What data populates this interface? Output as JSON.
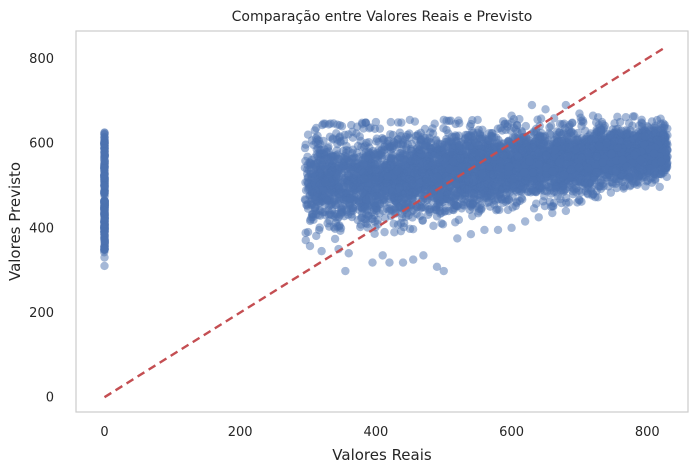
{
  "chart_data": {
    "type": "scatter",
    "title": "Comparação entre Valores Reais e Previsto",
    "xlabel": "Valores Reais",
    "ylabel": "Valores Previsto",
    "xlim": [
      -42,
      860
    ],
    "ylim": [
      -35,
      865
    ],
    "grid": false,
    "x_ticks": [
      0,
      200,
      400,
      600,
      800
    ],
    "x_tick_labels": [
      "0",
      "200",
      "400",
      "600",
      "800"
    ],
    "y_ticks": [
      0,
      200,
      400,
      600,
      800
    ],
    "y_tick_labels": [
      "0",
      "200",
      "400",
      "600",
      "800"
    ],
    "colors": {
      "points": "#4c72b0",
      "reference_line": "#c44e52",
      "frame": "#cccccc",
      "text": "#262626"
    },
    "series": [
      {
        "kind": "scatter",
        "description_role": "points",
        "clusters": [
          {
            "x": [
              0,
              0
            ],
            "y_range": [
              310,
              625
            ]
          },
          {
            "x_range": [
              295,
              830
            ],
            "y_at_x_min": [
              380,
              620
            ],
            "y_at_x_max": [
              520,
              640
            ]
          }
        ],
        "points": [
          [
            0,
            310
          ],
          [
            0,
            330
          ],
          [
            0,
            350
          ],
          [
            0,
            385
          ],
          [
            0,
            400
          ],
          [
            0,
            420
          ],
          [
            0,
            440
          ],
          [
            0,
            460
          ],
          [
            0,
            480
          ],
          [
            0,
            500
          ],
          [
            0,
            520
          ],
          [
            0,
            540
          ],
          [
            0,
            560
          ],
          [
            0,
            580
          ],
          [
            0,
            600
          ],
          [
            0,
            615
          ],
          [
            0,
            625
          ],
          [
            355,
            298
          ],
          [
            500,
            298
          ],
          [
            490,
            308
          ],
          [
            395,
            318
          ],
          [
            420,
            318
          ],
          [
            440,
            318
          ],
          [
            320,
            345
          ],
          [
            345,
            350
          ],
          [
            360,
            340
          ],
          [
            410,
            335
          ],
          [
            455,
            325
          ],
          [
            470,
            335
          ],
          [
            300,
            390
          ],
          [
            300,
            620
          ],
          [
            310,
            630
          ],
          [
            350,
            640
          ],
          [
            380,
            645
          ],
          [
            400,
            650
          ],
          [
            450,
            655
          ],
          [
            500,
            655
          ],
          [
            550,
            655
          ],
          [
            600,
            665
          ],
          [
            630,
            690
          ],
          [
            650,
            680
          ],
          [
            680,
            690
          ],
          [
            700,
            670
          ],
          [
            720,
            665
          ],
          [
            760,
            650
          ],
          [
            800,
            640
          ],
          [
            820,
            625
          ],
          [
            825,
            640
          ],
          [
            810,
            575
          ],
          [
            790,
            560
          ],
          [
            770,
            545
          ],
          [
            740,
            520
          ],
          [
            720,
            480
          ],
          [
            700,
            465
          ],
          [
            680,
            440
          ],
          [
            660,
            435
          ],
          [
            640,
            425
          ],
          [
            620,
            415
          ],
          [
            600,
            400
          ],
          [
            580,
            395
          ],
          [
            560,
            395
          ],
          [
            540,
            385
          ],
          [
            520,
            375
          ],
          [
            560,
            470
          ],
          [
            740,
            600
          ]
        ]
      },
      {
        "kind": "reference_line",
        "description_role": "y = x",
        "x": [
          0,
          825
        ],
        "y": [
          0,
          825
        ]
      }
    ]
  }
}
